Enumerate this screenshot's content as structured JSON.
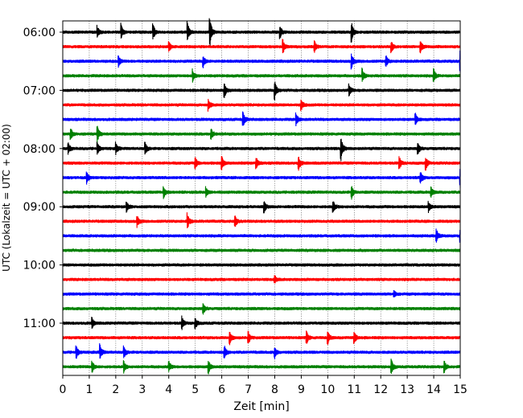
{
  "chart_data": {
    "type": "line",
    "title": "",
    "xlabel": "Zeit  [min]",
    "ylabel": "UTC (Lokalzeit = UTC + 02:00)",
    "xlim": [
      0,
      15
    ],
    "x_ticks": [
      "0",
      "1",
      "2",
      "3",
      "4",
      "5",
      "6",
      "7",
      "8",
      "9",
      "10",
      "11",
      "12",
      "13",
      "14",
      "15"
    ],
    "y_ticks": [
      {
        "label": "06:00",
        "trace": 0
      },
      {
        "label": "07:00",
        "trace": 4
      },
      {
        "label": "08:00",
        "trace": 8
      },
      {
        "label": "09:00",
        "trace": 12
      },
      {
        "label": "10:00",
        "trace": 16
      },
      {
        "label": "11:00",
        "trace": 20
      }
    ],
    "grid_x": true,
    "trace_interval_minutes": 15,
    "color_cycle": [
      "#000000",
      "#ff0000",
      "#0000ff",
      "#008000"
    ],
    "traces": [
      {
        "start": "06:00",
        "events": [
          [
            1.3,
            0.35
          ],
          [
            2.2,
            0.45
          ],
          [
            3.4,
            0.5
          ],
          [
            4.7,
            0.6
          ],
          [
            5.55,
            0.85
          ],
          [
            8.2,
            0.35
          ],
          [
            10.9,
            0.5
          ]
        ]
      },
      {
        "start": "06:15",
        "events": [
          [
            4.0,
            0.3
          ],
          [
            8.3,
            0.4
          ],
          [
            9.5,
            0.3
          ],
          [
            12.4,
            0.3
          ],
          [
            13.5,
            0.3
          ]
        ]
      },
      {
        "start": "06:30",
        "events": [
          [
            2.1,
            0.3
          ],
          [
            5.3,
            0.3
          ],
          [
            10.9,
            0.4
          ],
          [
            12.2,
            0.3
          ],
          [
            15.0,
            0.6
          ]
        ]
      },
      {
        "start": "06:45",
        "events": [
          [
            4.9,
            0.35
          ],
          [
            11.3,
            0.4
          ],
          [
            14.0,
            0.35
          ]
        ]
      },
      {
        "start": "07:00",
        "events": [
          [
            6.1,
            0.45
          ],
          [
            8.0,
            0.5
          ],
          [
            10.8,
            0.35
          ]
        ]
      },
      {
        "start": "07:15",
        "events": [
          [
            5.5,
            0.3
          ],
          [
            9.0,
            0.3
          ]
        ]
      },
      {
        "start": "07:30",
        "events": [
          [
            6.8,
            0.45
          ],
          [
            8.8,
            0.35
          ],
          [
            13.3,
            0.35
          ]
        ]
      },
      {
        "start": "07:45",
        "events": [
          [
            0.3,
            0.35
          ],
          [
            1.3,
            0.45
          ],
          [
            5.6,
            0.3
          ]
        ]
      },
      {
        "start": "08:00",
        "events": [
          [
            0.2,
            0.35
          ],
          [
            1.3,
            0.35
          ],
          [
            2.0,
            0.3
          ],
          [
            3.1,
            0.4
          ],
          [
            10.5,
            0.75
          ],
          [
            13.4,
            0.35
          ]
        ]
      },
      {
        "start": "08:15",
        "events": [
          [
            5.0,
            0.35
          ],
          [
            6.0,
            0.4
          ],
          [
            7.3,
            0.3
          ],
          [
            8.9,
            0.4
          ],
          [
            12.7,
            0.35
          ],
          [
            13.7,
            0.35
          ]
        ]
      },
      {
        "start": "08:30",
        "events": [
          [
            0.9,
            0.35
          ],
          [
            13.5,
            0.35
          ],
          [
            15.0,
            0.5
          ]
        ]
      },
      {
        "start": "08:45",
        "events": [
          [
            3.8,
            0.35
          ],
          [
            5.4,
            0.3
          ],
          [
            10.9,
            0.35
          ],
          [
            13.9,
            0.3
          ]
        ]
      },
      {
        "start": "09:00",
        "events": [
          [
            2.4,
            0.3
          ],
          [
            7.6,
            0.3
          ],
          [
            10.2,
            0.35
          ],
          [
            13.8,
            0.3
          ]
        ]
      },
      {
        "start": "09:15",
        "events": [
          [
            2.8,
            0.35
          ],
          [
            4.7,
            0.45
          ],
          [
            6.5,
            0.3
          ]
        ]
      },
      {
        "start": "09:30",
        "events": [
          [
            14.1,
            0.35
          ],
          [
            15.0,
            0.3
          ]
        ]
      },
      {
        "start": "09:45",
        "events": []
      },
      {
        "start": "10:00",
        "events": []
      },
      {
        "start": "10:15",
        "events": [
          [
            8.0,
            0.2
          ]
        ]
      },
      {
        "start": "10:30",
        "events": [
          [
            12.5,
            0.2
          ]
        ]
      },
      {
        "start": "10:45",
        "events": [
          [
            5.3,
            0.3
          ]
        ]
      },
      {
        "start": "11:00",
        "events": [
          [
            1.1,
            0.3
          ],
          [
            4.5,
            0.35
          ],
          [
            5.0,
            0.3
          ]
        ]
      },
      {
        "start": "11:15",
        "events": [
          [
            6.3,
            0.35
          ],
          [
            7.0,
            0.35
          ],
          [
            9.2,
            0.35
          ],
          [
            10.0,
            0.35
          ],
          [
            11.0,
            0.35
          ]
        ]
      },
      {
        "start": "11:30",
        "events": [
          [
            0.5,
            0.4
          ],
          [
            1.4,
            0.45
          ],
          [
            2.3,
            0.35
          ],
          [
            6.1,
            0.35
          ],
          [
            8.0,
            0.3
          ]
        ]
      },
      {
        "start": "11:45",
        "events": [
          [
            1.1,
            0.35
          ],
          [
            2.3,
            0.3
          ],
          [
            4.0,
            0.3
          ],
          [
            5.5,
            0.35
          ],
          [
            12.4,
            0.4
          ],
          [
            14.4,
            0.3
          ]
        ]
      }
    ]
  }
}
